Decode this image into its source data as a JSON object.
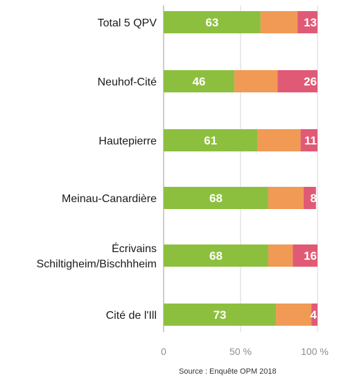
{
  "chart_data": {
    "type": "bar",
    "orientation": "horizontal",
    "stacked": true,
    "categories": [
      [
        "Total 5 QPV"
      ],
      [
        "Neuhof-Cité"
      ],
      [
        "Hautepierre"
      ],
      [
        "Meinau-Canardière"
      ],
      [
        "Écrivains",
        "Schiltigheim/Bischhheim"
      ],
      [
        "Cité de l'Ill"
      ]
    ],
    "series": [
      {
        "values": [
          63,
          46,
          61,
          68,
          68,
          73
        ],
        "labels": [
          "63",
          "46",
          "61",
          "68",
          "68",
          "73"
        ],
        "color": "#8dbf3f"
      },
      {
        "values": [
          24,
          28,
          28,
          23,
          16,
          23
        ],
        "labels": [
          "",
          "",
          "",
          "",
          "",
          ""
        ],
        "color": "#f09a55"
      },
      {
        "values": [
          13,
          26,
          11,
          8,
          16,
          4
        ],
        "labels": [
          "13",
          "26",
          "11",
          "8",
          "16",
          "4"
        ],
        "color": "#e05a76"
      }
    ],
    "xlim": [
      0,
      100
    ],
    "x_ticks": [
      {
        "value": 0,
        "label": "0"
      },
      {
        "value": 50,
        "label": "50 %"
      },
      {
        "value": 100,
        "label": "100 %"
      }
    ],
    "grid": true,
    "source": "Source : Enquête OPM 2018"
  }
}
